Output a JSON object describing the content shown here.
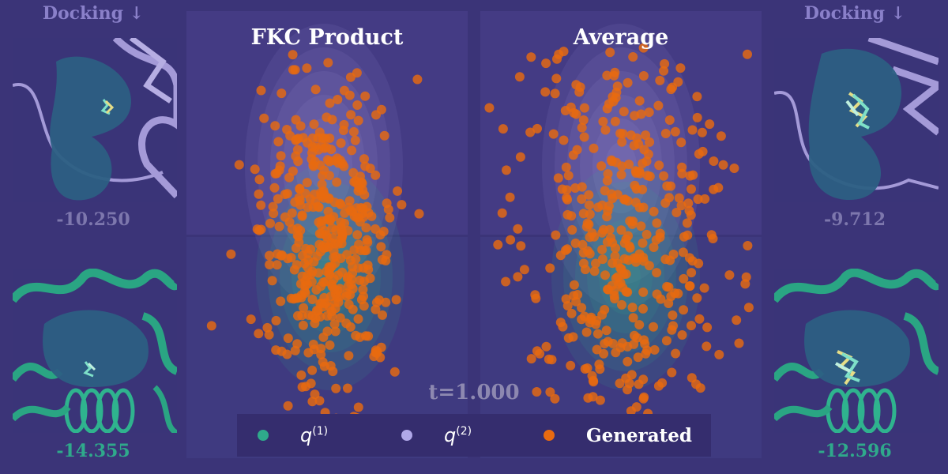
{
  "left_column": {
    "docking_label": "Docking ↓",
    "top_score": "-10.250",
    "bottom_score": "-14.355"
  },
  "right_column": {
    "docking_label": "Docking ↓",
    "top_score": "-9.712",
    "bottom_score": "-12.596"
  },
  "plots": {
    "left_title": "FKC Product",
    "right_title": "Average"
  },
  "time_label": "t=1.000",
  "legend": {
    "items": [
      {
        "symbol": "q",
        "superscript": "(1)",
        "color": "#2fa98b"
      },
      {
        "symbol": "q",
        "superscript": "(2)",
        "color": "#b0a8e8"
      },
      {
        "label": "Generated",
        "color": "#e86a10"
      }
    ]
  },
  "colors": {
    "background": "#3b3478",
    "q1": "#2fa98b",
    "q2": "#b0a8e8",
    "generated": "#e86a10",
    "score_top": "#7d77ad",
    "score_bottom": "#2fa98b"
  },
  "chart_data": {
    "type": "scatter",
    "description_series": [
      "q(1)",
      "q(2)",
      "Generated"
    ],
    "panels": [
      {
        "title": "FKC Product",
        "center_x": 0.0,
        "center_y": 0.0,
        "spread_x": 1.0,
        "spread_y": 1.6,
        "n_points": 420
      },
      {
        "title": "Average",
        "center_x": 0.0,
        "center_y": 0.0,
        "spread_x": 1.6,
        "spread_y": 2.2,
        "n_points": 420
      }
    ]
  }
}
